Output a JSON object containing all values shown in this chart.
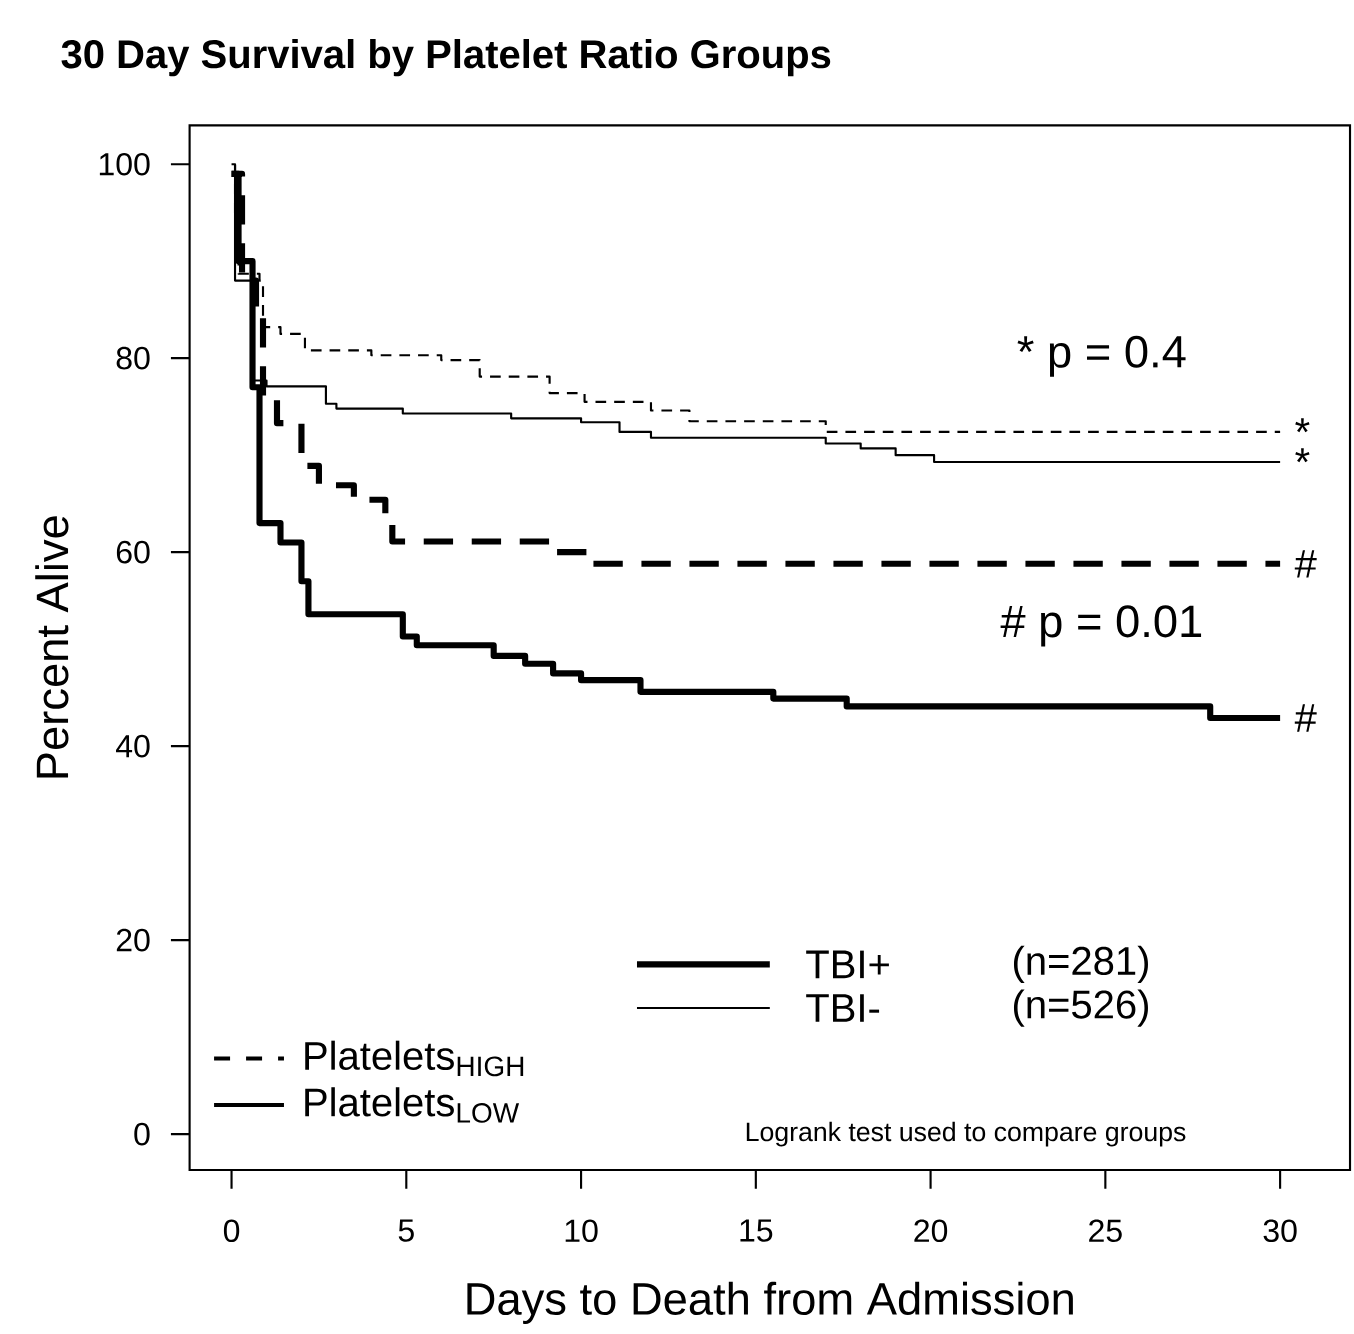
{
  "chart_data": {
    "type": "step",
    "title": "30 Day Survival by Platelet Ratio Groups",
    "xlabel": "Days to Death from Admission",
    "ylabel": "Percent Alive",
    "xlim": [
      -1.2,
      32
    ],
    "ylim": [
      -3.7,
      104
    ],
    "xticks": [
      0,
      5,
      10,
      15,
      20,
      25,
      30
    ],
    "yticks": [
      0,
      20,
      40,
      60,
      80,
      100
    ],
    "grid": false,
    "marker": "none",
    "series": [
      {
        "color": "#000000",
        "line_style": "dashed",
        "x": [
          0,
          0.1,
          0.2,
          0.8,
          0.9,
          1.4,
          2.1,
          4.0,
          6.0,
          7.1,
          9.1,
          10.1,
          12.0,
          13.1,
          17.0,
          30
        ],
        "values": [
          100,
          94.9,
          88.7,
          88,
          83.2,
          82.5,
          80.8,
          80.3,
          79.8,
          78.1,
          76.4,
          75.5,
          74.6,
          73.5,
          72.4,
          72.4
        ]
      },
      {
        "color": "#000000",
        "line_style": "solid",
        "x": [
          0,
          0.1,
          0.6,
          1.0,
          2.7,
          3.0,
          4.9,
          8.0,
          10.0,
          11.1,
          12.0,
          17.0,
          18.0,
          19.0,
          20.1,
          30
        ],
        "values": [
          100,
          88,
          77.7,
          77.1,
          75.3,
          74.8,
          74.3,
          73.8,
          73.4,
          72.4,
          71.8,
          71.2,
          70.7,
          70.0,
          69.3,
          69.3
        ]
      },
      {
        "color": "#000000",
        "line_style": "dashed",
        "x": [
          0,
          0.3,
          0.7,
          0.9,
          1.3,
          2.0,
          2.5,
          3.5,
          4.4,
          4.6,
          9.1,
          10.2,
          30
        ],
        "values": [
          99,
          88,
          85,
          75.7,
          73.3,
          68.9,
          66.9,
          65.4,
          63.3,
          61.1,
          60.0,
          58.8,
          58.8
        ]
      },
      {
        "color": "#000000",
        "line_style": "solid",
        "x": [
          0,
          0.2,
          0.6,
          0.8,
          1.4,
          2.0,
          2.2,
          4.9,
          5.3,
          7.5,
          8.4,
          9.2,
          10.0,
          11.7,
          15.5,
          17.6,
          28.0,
          30
        ],
        "values": [
          99,
          90,
          77,
          63,
          61,
          57,
          53.6,
          51.3,
          50.4,
          49.3,
          48.5,
          47.5,
          46.8,
          45.6,
          44.9,
          44.1,
          42.9,
          42.9
        ]
      }
    ],
    "annotations": [
      "* p = 0.4",
      "# p = 0.01",
      "*",
      "*",
      "#",
      "#",
      "TBI+",
      "(n=281)",
      "TBI-",
      "(n=526)",
      "Platelets$_{HIGH}$",
      "Platelets$_{LOW}$",
      "Logrank test used to compare groups"
    ]
  }
}
